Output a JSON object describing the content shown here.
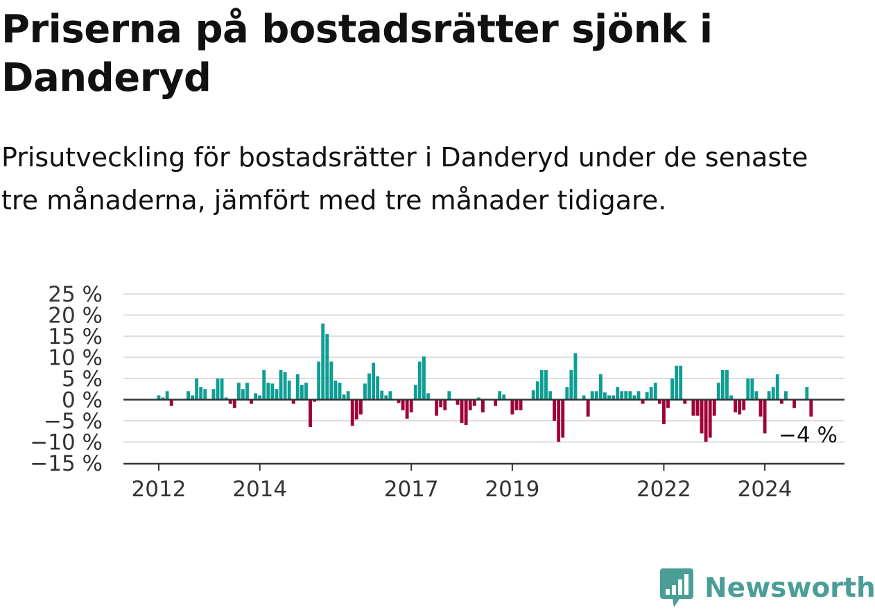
{
  "title": "Priserna på bostadsrätter sjönk i Danderyd",
  "subtitle": "Prisutveckling för bostadsrätter i Danderyd under de senaste tre månaderna, jämfört med tre månader tidigare.",
  "brand": {
    "name": "Newsworthy",
    "logo_icon": "newsworthy-logo-icon",
    "color": "#4a9e96"
  },
  "chart_data": {
    "type": "bar",
    "y_unit": "%",
    "ylim": [
      -15,
      25
    ],
    "y_ticks": [
      {
        "value": 25,
        "label": "25 %"
      },
      {
        "value": 20,
        "label": "20 %"
      },
      {
        "value": 15,
        "label": "15 %"
      },
      {
        "value": 10,
        "label": "10 %"
      },
      {
        "value": 5,
        "label": "5 %"
      },
      {
        "value": 0,
        "label": "0 %"
      },
      {
        "value": -5,
        "label": "−5 %"
      },
      {
        "value": -10,
        "label": "−10 %"
      },
      {
        "value": -15,
        "label": "−15 %"
      }
    ],
    "x_ticks": [
      {
        "date": "2012-01",
        "label": "2012"
      },
      {
        "date": "2014-01",
        "label": "2014"
      },
      {
        "date": "2017-01",
        "label": "2017"
      },
      {
        "date": "2019-01",
        "label": "2019"
      },
      {
        "date": "2022-01",
        "label": "2022"
      },
      {
        "date": "2024-01",
        "label": "2024"
      }
    ],
    "grid": true,
    "colors": {
      "positive": "#0e9e94",
      "negative": "#a0003a",
      "gridline": "#dddddd",
      "zero_line": "#333333",
      "axis": "#333333",
      "tick_text": "#333333"
    },
    "annotation": {
      "date": "2024-12",
      "value": -4,
      "label": "−4 %"
    },
    "start": "2011-12",
    "values": [
      null,
      1,
      0.5,
      2,
      -1.5,
      null,
      null,
      null,
      2,
      1,
      5,
      3,
      2.5,
      null,
      2.5,
      5,
      5,
      0.5,
      -1,
      -2,
      4,
      2.5,
      4,
      -1,
      1.5,
      1,
      7,
      4,
      3.8,
      2.5,
      7,
      6.5,
      4.5,
      -1,
      6,
      3.5,
      4,
      -6.5,
      -0.5,
      9,
      18,
      15.5,
      9,
      4.5,
      4,
      1.2,
      2,
      -6.2,
      -4.7,
      -3.5,
      3.8,
      6.2,
      8.7,
      5.5,
      2.1,
      1,
      2,
      null,
      -0.8,
      -2.5,
      -4.5,
      -3,
      3.5,
      9,
      10.2,
      1.5,
      null,
      -3.8,
      -1.8,
      -2.5,
      2,
      null,
      -1.2,
      -5.5,
      -6,
      -2.5,
      -1.5,
      0.5,
      -3,
      null,
      null,
      -1.5,
      2,
      1.2,
      null,
      -3.5,
      -2.5,
      -2.5,
      null,
      null,
      2.2,
      4.3,
      7,
      7,
      2,
      -5,
      -10,
      -9,
      3,
      7,
      11,
      null,
      1,
      -4,
      2,
      2,
      6,
      1.7,
      1,
      1,
      3,
      2,
      2,
      2,
      1,
      2,
      -1,
      1.8,
      3,
      4,
      -1,
      -5.8,
      -2,
      5,
      8,
      8,
      -1,
      null,
      -3.8,
      -3.8,
      -8,
      -10,
      -9,
      -3.8,
      4,
      7,
      7,
      1,
      -3,
      -3.5,
      -2.5,
      5,
      5,
      2,
      -4,
      -8,
      2,
      3,
      6,
      -1,
      2,
      null,
      -2,
      null,
      null,
      3,
      -4
    ]
  }
}
